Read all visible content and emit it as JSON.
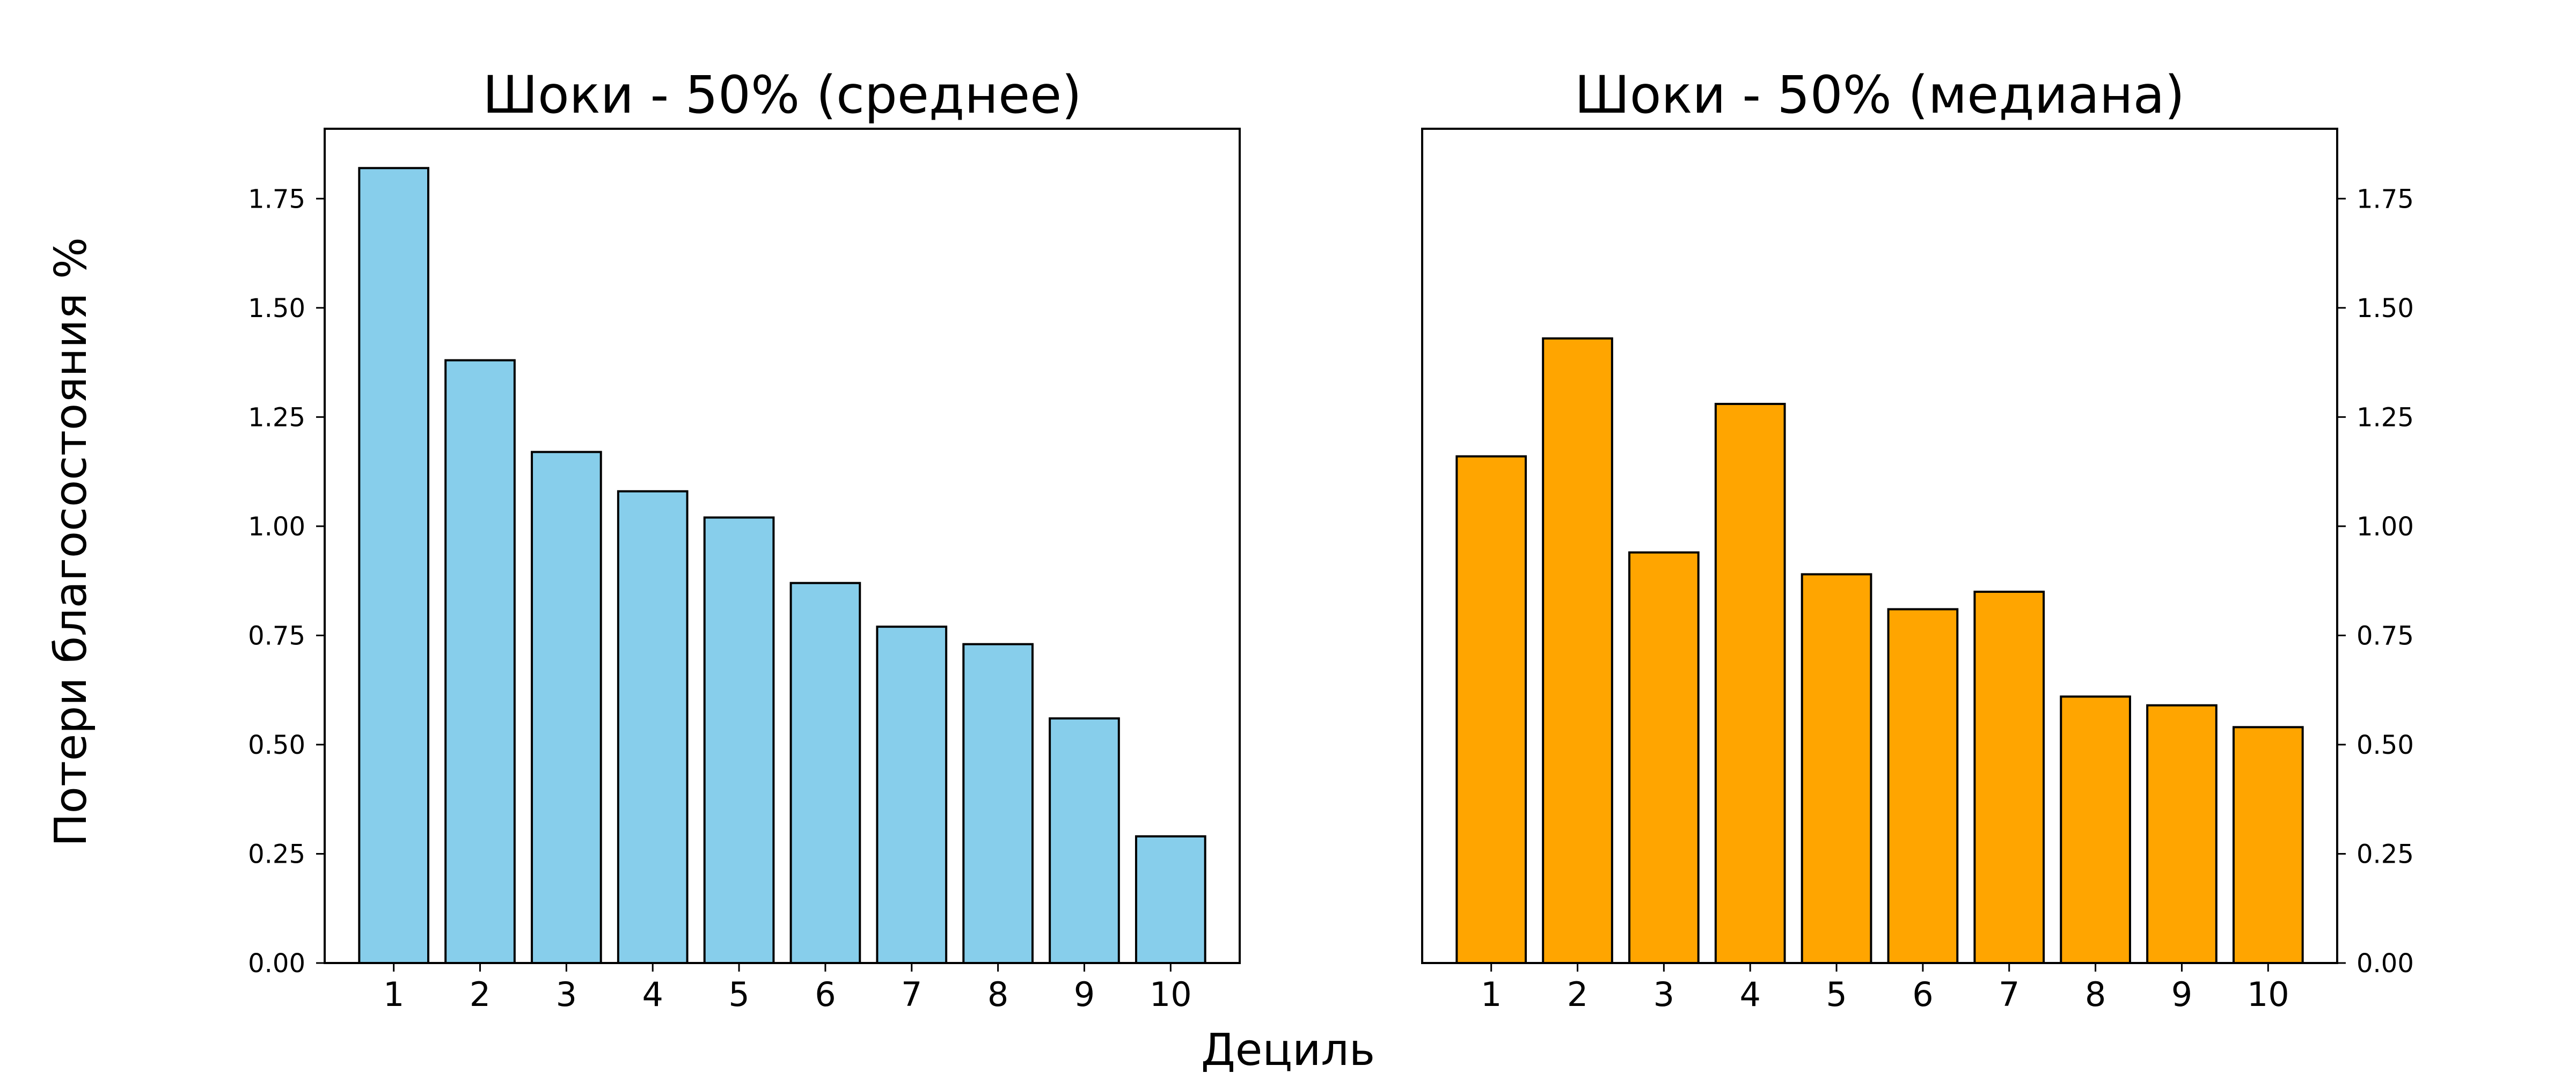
{
  "figure": {
    "supxlabel": "Дециль",
    "supylabel": "Потери благосостояния %"
  },
  "colors": {
    "mean": "#87CEEB",
    "median": "#FFA500",
    "edge": "#000000"
  },
  "chart_data": [
    {
      "type": "bar",
      "title": "Шоки - 50% (среднее)",
      "categories": [
        "1",
        "2",
        "3",
        "4",
        "5",
        "6",
        "7",
        "8",
        "9",
        "10"
      ],
      "values": [
        1.82,
        1.38,
        1.17,
        1.08,
        1.02,
        0.87,
        0.77,
        0.73,
        0.56,
        0.29
      ],
      "ylim": [
        0,
        1.91
      ],
      "yticks": [
        "0.00",
        "0.25",
        "0.50",
        "0.75",
        "1.00",
        "1.25",
        "1.50",
        "1.75"
      ],
      "ytick_side": "left",
      "color": "#87CEEB",
      "grid": false
    },
    {
      "type": "bar",
      "title": "Шоки - 50% (медиана)",
      "categories": [
        "1",
        "2",
        "3",
        "4",
        "5",
        "6",
        "7",
        "8",
        "9",
        "10"
      ],
      "values": [
        1.16,
        1.43,
        0.94,
        1.28,
        0.89,
        0.81,
        0.85,
        0.61,
        0.59,
        0.54
      ],
      "ylim": [
        0,
        1.91
      ],
      "yticks": [
        "0.00",
        "0.25",
        "0.50",
        "0.75",
        "1.00",
        "1.25",
        "1.50",
        "1.75"
      ],
      "ytick_side": "right",
      "color": "#FFA500",
      "grid": false
    }
  ]
}
